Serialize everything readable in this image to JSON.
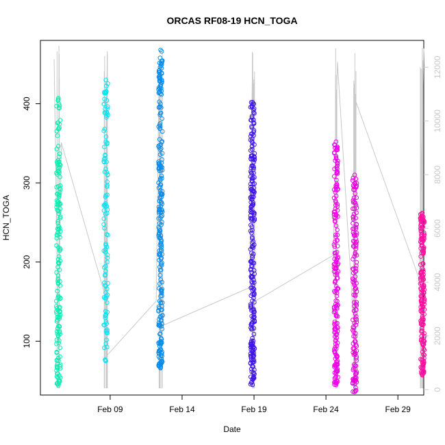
{
  "chart_data": {
    "type": "scatter",
    "title": "ORCAS RF08-19 HCN_TOGA",
    "xlabel": "Date",
    "ylabel": "HCN_TOGA",
    "x_ticks": [
      "Feb 09",
      "Feb 14",
      "Feb 19",
      "Feb 24",
      "Feb 29"
    ],
    "x_tick_days": [
      9,
      14,
      19,
      24,
      29
    ],
    "xlim_days": [
      4.15,
      30.8
    ],
    "y_ticks": [
      100,
      200,
      300,
      400
    ],
    "ylim": [
      32,
      480
    ],
    "y2_ticks": [
      0,
      2000,
      4000,
      6000,
      8000,
      10000,
      12000
    ],
    "y2lim": [
      -200,
      13000
    ],
    "grid": false,
    "legend": "none",
    "altitude_color": "#c8c8c8",
    "series": [
      {
        "flight_day": 5.4,
        "color": "#00f0b0",
        "ymin": 44,
        "ymax": 407,
        "count": 170
      },
      {
        "flight_day": 8.7,
        "color": "#00e5f0",
        "ymin": 75,
        "ymax": 430,
        "count": 110
      },
      {
        "flight_day": 12.5,
        "color": "#0a8ce8",
        "ymin": 66,
        "ymax": 468,
        "count": 260
      },
      {
        "flight_day": 18.9,
        "color": "#4015e8",
        "ymin": 45,
        "ymax": 402,
        "count": 260
      },
      {
        "flight_day": 24.7,
        "color": "#f000e8",
        "ymin": 45,
        "ymax": 352,
        "count": 200
      },
      {
        "flight_day": 26.0,
        "color": "#e400d8",
        "ymin": 36,
        "ymax": 310,
        "count": 150
      },
      {
        "flight_day": 30.7,
        "color": "#ff10a0",
        "ymin": 57,
        "ymax": 262,
        "count": 190
      }
    ],
    "altitude_trace": [
      {
        "day": 5.1,
        "alt": 12300
      },
      {
        "day": 5.4,
        "alt": 1800
      },
      {
        "day": 5.6,
        "alt": 9200
      },
      {
        "day": 8.6,
        "alt": 3600
      },
      {
        "day": 8.8,
        "alt": 12600
      },
      {
        "day": 8.65,
        "alt": 1200
      },
      {
        "day": 12.2,
        "alt": 3300
      },
      {
        "day": 12.4,
        "alt": 12100
      },
      {
        "day": 12.7,
        "alt": 2400
      },
      {
        "day": 18.7,
        "alt": 3800
      },
      {
        "day": 18.9,
        "alt": 12400
      },
      {
        "day": 19.1,
        "alt": 3300
      },
      {
        "day": 24.5,
        "alt": 5000
      },
      {
        "day": 24.8,
        "alt": 12200
      },
      {
        "day": 25.9,
        "alt": 2700
      },
      {
        "day": 26.1,
        "alt": 10700
      },
      {
        "day": 30.5,
        "alt": 4100
      },
      {
        "day": 30.8,
        "alt": 12700
      }
    ]
  }
}
